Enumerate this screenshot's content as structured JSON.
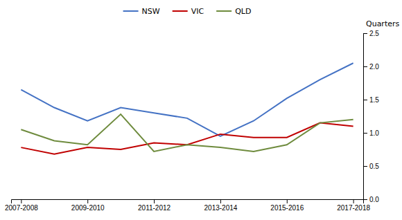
{
  "chart_data": {
    "type": "line",
    "y_label": "Quarters",
    "categories": [
      "2007-2008",
      null,
      "2009-2010",
      null,
      "2011-2012",
      null,
      "2013-2014",
      null,
      "2015-2016",
      null,
      "2017-2018"
    ],
    "series": [
      {
        "name": "NSW",
        "color": "#4472C4",
        "values": [
          1.65,
          1.38,
          1.18,
          1.38,
          1.3,
          1.22,
          0.95,
          1.18,
          1.52,
          1.8,
          2.05
        ]
      },
      {
        "name": "VIC",
        "color": "#C00000",
        "values": [
          0.78,
          0.68,
          0.78,
          0.75,
          0.85,
          0.82,
          0.98,
          0.93,
          0.93,
          1.15,
          1.1
        ]
      },
      {
        "name": "QLD",
        "color": "#6E8B3D",
        "values": [
          1.05,
          0.88,
          0.82,
          1.28,
          0.72,
          0.82,
          0.78,
          0.72,
          0.82,
          1.15,
          1.2
        ]
      }
    ],
    "ylim": [
      0,
      2.5
    ],
    "yticks": [
      {
        "value": 0,
        "label": "0.0"
      },
      0.5,
      {
        "value": 1.0,
        "label": "1.0"
      },
      1.5,
      {
        "value": 2.0,
        "label": "2.0"
      },
      2.5
    ],
    "grid": false,
    "legend": "top"
  }
}
